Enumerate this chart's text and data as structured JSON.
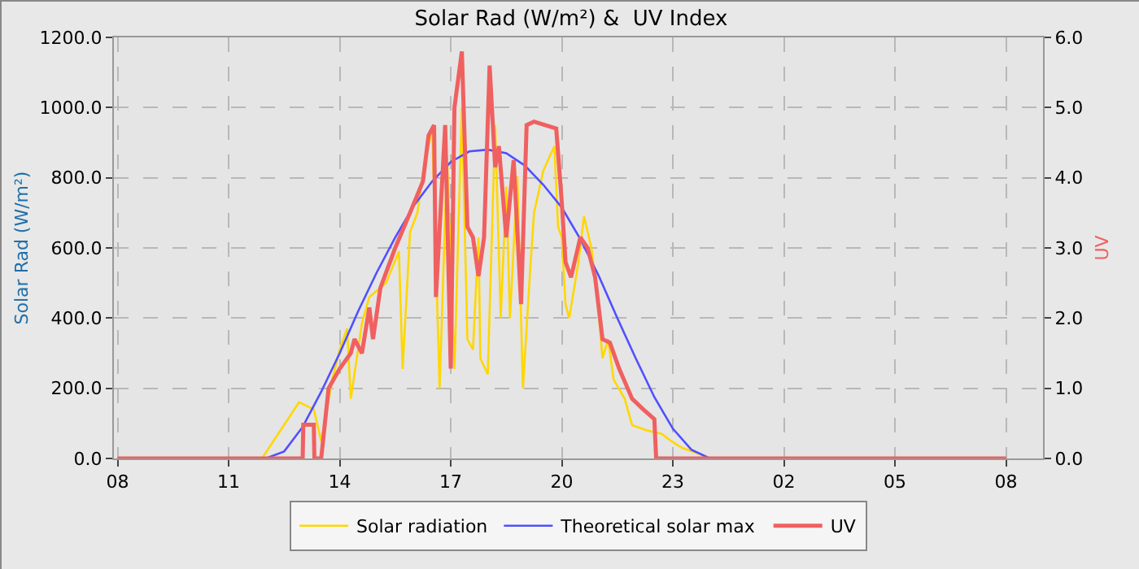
{
  "chart_data": {
    "type": "line",
    "title": "Solar Rad (W/m²) &  UV Index",
    "ylabel": "Solar Rad (W/m²)",
    "y2label": "UV",
    "xlim": [
      "--01-01T07:54",
      "--01-02T09:00"
    ],
    "xticks": [
      {
        "value": "--01-01T08:00",
        "label": "08"
      },
      {
        "value": "--01-01T11:00",
        "label": "11"
      },
      {
        "value": "--01-01T14:00",
        "label": "14"
      },
      {
        "value": "--01-01T17:00",
        "label": "17"
      },
      {
        "value": "--01-01T20:00",
        "label": "20"
      },
      {
        "value": "--01-01T23:00",
        "label": "23"
      },
      {
        "value": "--01-02T02:00",
        "label": "02"
      },
      {
        "value": "--01-02T05:00",
        "label": "05"
      },
      {
        "value": "--01-02T08:00",
        "label": "08"
      }
    ],
    "ylim": [
      0,
      1200
    ],
    "yticks": [
      {
        "value": 0,
        "label": "0.0"
      },
      {
        "value": 200,
        "label": "200.0"
      },
      {
        "value": 400,
        "label": "400.0"
      },
      {
        "value": 600,
        "label": "600.0"
      },
      {
        "value": 800,
        "label": "800.0"
      },
      {
        "value": 1000,
        "label": "1000.0"
      },
      {
        "value": 1200,
        "label": "1200.0"
      }
    ],
    "y2lim": [
      0,
      6
    ],
    "y2ticks": [
      {
        "value": 0,
        "label": "0.0"
      },
      {
        "value": 1,
        "label": "1.0"
      },
      {
        "value": 2,
        "label": "2.0"
      },
      {
        "value": 3,
        "label": "3.0"
      },
      {
        "value": 4,
        "label": "4.0"
      },
      {
        "value": 5,
        "label": "5.0"
      },
      {
        "value": 6,
        "label": "6.0"
      }
    ],
    "grid": true,
    "legend": "bottom",
    "marker": "none",
    "line_style": "solid",
    "series": [
      {
        "name": "Solar radiation",
        "color": "#ffd700",
        "x": [
          "--01-01T08:00",
          "--01-01T11:54",
          "--01-01T12:54",
          "--01-01T13:18",
          "--01-01T13:30",
          "--01-01T13:48",
          "--01-01T14:00",
          "--01-01T14:12",
          "--01-01T14:18",
          "--01-01T14:36",
          "--01-01T14:48",
          "--01-01T15:15",
          "--01-01T15:36",
          "--01-01T15:42",
          "--01-01T15:54",
          "--01-01T16:06",
          "--01-01T16:18",
          "--01-01T16:30",
          "--01-01T16:42",
          "--01-01T16:54",
          "--01-01T17:06",
          "--01-01T17:18",
          "--01-01T17:27",
          "--01-01T17:36",
          "--01-01T17:45",
          "--01-01T17:48",
          "--01-01T18:00",
          "--01-01T18:12",
          "--01-01T18:21",
          "--01-01T18:30",
          "--01-01T18:36",
          "--01-01T18:48",
          "--01-01T18:57",
          "--01-01T19:09",
          "--01-01T19:15",
          "--01-01T19:30",
          "--01-01T19:48",
          "--01-01T19:54",
          "--01-01T20:00",
          "--01-01T20:06",
          "--01-01T20:12",
          "--01-01T20:27",
          "--01-01T20:36",
          "--01-01T20:48",
          "--01-01T20:57",
          "--01-01T21:06",
          "--01-01T21:15",
          "--01-01T21:24",
          "--01-01T21:42",
          "--01-01T21:54",
          "--01-01T22:18",
          "--01-01T22:42",
          "--01-01T22:57",
          "--01-01T23:15",
          "--01-01T23:48",
          "--01-02T00:00",
          "--01-02T08:00"
        ],
        "values": [
          0,
          0,
          160,
          140,
          50,
          225,
          310,
          370,
          170,
          385,
          460,
          500,
          590,
          255,
          645,
          700,
          850,
          935,
          200,
          860,
          255,
          1000,
          340,
          310,
          630,
          285,
          240,
          950,
          400,
          775,
          400,
          805,
          200,
          545,
          700,
          820,
          890,
          660,
          630,
          440,
          400,
          560,
          690,
          600,
          470,
          285,
          340,
          225,
          170,
          95,
          80,
          70,
          50,
          30,
          10,
          0,
          0
        ]
      },
      {
        "name": "Theoretical solar max",
        "color": "#5050ff",
        "x": [
          "--01-01T08:00",
          "--01-01T12:00",
          "--01-01T12:30",
          "--01-01T13:00",
          "--01-01T13:30",
          "--01-01T14:00",
          "--01-01T14:30",
          "--01-01T15:00",
          "--01-01T15:30",
          "--01-01T16:00",
          "--01-01T16:30",
          "--01-01T17:00",
          "--01-01T17:30",
          "--01-01T18:00",
          "--01-01T18:30",
          "--01-01T19:00",
          "--01-01T19:30",
          "--01-01T20:00",
          "--01-01T20:30",
          "--01-01T21:00",
          "--01-01T21:30",
          "--01-01T22:00",
          "--01-01T22:30",
          "--01-01T23:00",
          "--01-01T23:30",
          "--01-02T00:00",
          "--01-02T08:00"
        ],
        "values": [
          0,
          0,
          20,
          90,
          190,
          300,
          420,
          530,
          630,
          720,
          790,
          845,
          875,
          880,
          870,
          835,
          780,
          715,
          625,
          520,
          400,
          285,
          175,
          85,
          25,
          0,
          0
        ]
      },
      {
        "name": "UV",
        "color": "#f06060",
        "axis": "y2",
        "x": [
          "--01-01T08:00",
          "--01-01T13:00",
          "--01-01T13:01",
          "--01-01T13:18",
          "--01-01T13:19",
          "--01-01T13:30",
          "--01-01T13:42",
          "--01-01T14:00",
          "--01-01T14:18",
          "--01-01T14:24",
          "--01-01T14:36",
          "--01-01T14:48",
          "--01-01T14:54",
          "--01-01T15:06",
          "--01-01T15:30",
          "--01-01T15:54",
          "--01-01T16:15",
          "--01-01T16:24",
          "--01-01T16:33",
          "--01-01T16:36",
          "--01-01T16:51",
          "--01-01T17:00",
          "--01-01T17:06",
          "--01-01T17:18",
          "--01-01T17:27",
          "--01-01T17:36",
          "--01-01T17:45",
          "--01-01T17:54",
          "--01-01T18:03",
          "--01-01T18:12",
          "--01-01T18:18",
          "--01-01T18:30",
          "--01-01T18:42",
          "--01-01T18:54",
          "--01-01T19:03",
          "--01-01T19:15",
          "--01-01T19:51",
          "--01-01T20:00",
          "--01-01T20:06",
          "--01-01T20:15",
          "--01-01T20:30",
          "--01-01T20:42",
          "--01-01T20:54",
          "--01-01T21:06",
          "--01-01T21:18",
          "--01-01T21:33",
          "--01-01T21:54",
          "--01-01T22:12",
          "--01-01T22:30",
          "--01-01T22:33",
          "--01-02T08:00"
        ],
        "values": [
          0,
          0,
          0.48,
          0.48,
          0,
          0,
          1.0,
          1.28,
          1.5,
          1.7,
          1.5,
          2.15,
          1.7,
          2.43,
          3.0,
          3.5,
          3.95,
          4.6,
          4.75,
          2.3,
          4.75,
          1.28,
          5.0,
          5.8,
          3.3,
          3.15,
          2.6,
          3.15,
          5.6,
          4.15,
          4.45,
          3.15,
          4.25,
          2.2,
          4.75,
          4.8,
          4.7,
          3.65,
          2.8,
          2.58,
          3.15,
          3.0,
          2.58,
          1.7,
          1.65,
          1.28,
          0.85,
          0.7,
          0.56,
          0,
          0
        ]
      }
    ]
  }
}
